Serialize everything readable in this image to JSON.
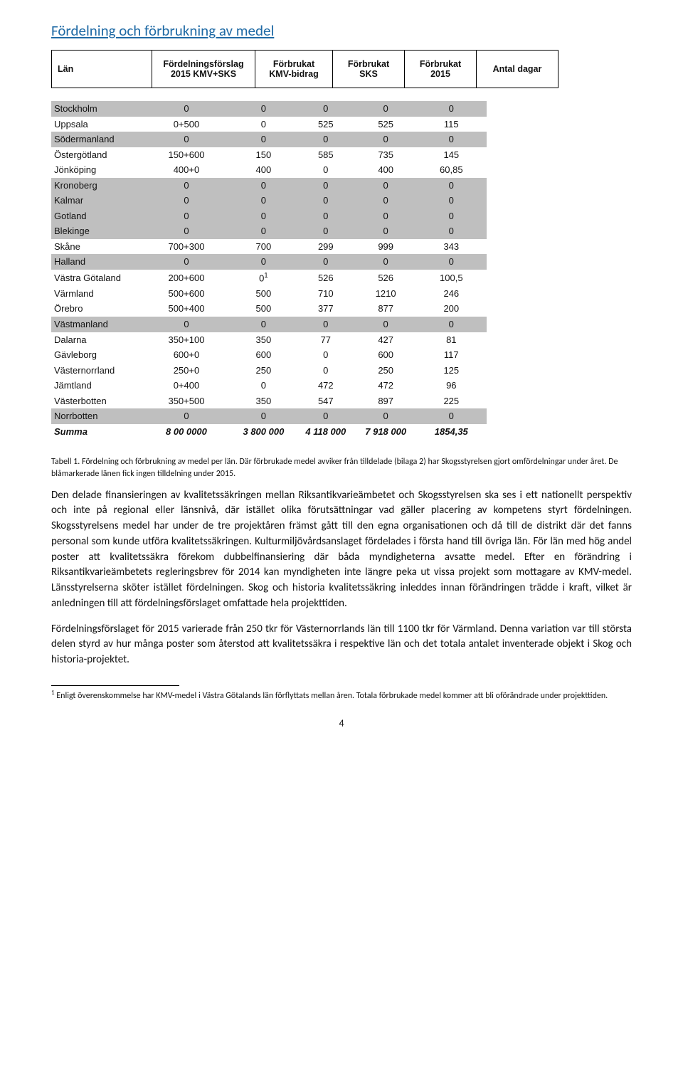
{
  "title": "Fördelning och förbrukning av medel",
  "header": {
    "c0": "Län",
    "c1": "Fördelningsförslag 2015 KMV+SKS",
    "c2": "Förbrukat KMV-bidrag",
    "c3": "Förbrukat SKS",
    "c4": "Förbrukat 2015",
    "c5": "Antal dagar"
  },
  "colors": {
    "title_color": "#1f6aa5",
    "grey_row": "#bfbfbf",
    "border": "#000000",
    "background": "#ffffff"
  },
  "rows": [
    {
      "name": "Stockholm",
      "c1": "0",
      "c2": "0",
      "c3": "0",
      "c4": "0",
      "c5": "0",
      "grey": true
    },
    {
      "name": "Uppsala",
      "c1": "0+500",
      "c2": "0",
      "c3": "525",
      "c4": "525",
      "c5": "115"
    },
    {
      "name": "Södermanland",
      "c1": "0",
      "c2": "0",
      "c3": "0",
      "c4": "0",
      "c5": "0",
      "grey": true
    },
    {
      "name": "Östergötland",
      "c1": "150+600",
      "c2": "150",
      "c3": "585",
      "c4": "735",
      "c5": "145"
    },
    {
      "name": "Jönköping",
      "c1": "400+0",
      "c2": "400",
      "c3": "0",
      "c4": "400",
      "c5": "60,85"
    },
    {
      "name": "Kronoberg",
      "c1": "0",
      "c2": "0",
      "c3": "0",
      "c4": "0",
      "c5": "0",
      "grey": true
    },
    {
      "name": "Kalmar",
      "c1": "0",
      "c2": "0",
      "c3": "0",
      "c4": "0",
      "c5": "0",
      "grey": true
    },
    {
      "name": "Gotland",
      "c1": "0",
      "c2": "0",
      "c3": "0",
      "c4": "0",
      "c5": "0",
      "grey": true
    },
    {
      "name": "Blekinge",
      "c1": "0",
      "c2": "0",
      "c3": "0",
      "c4": "0",
      "c5": "0",
      "grey": true
    },
    {
      "name": "Skåne",
      "c1": "700+300",
      "c2": "700",
      "c3": "299",
      "c4": "999",
      "c5": "343"
    },
    {
      "name": "Halland",
      "c1": "0",
      "c2": "0",
      "c3": "0",
      "c4": "0",
      "c5": "0",
      "grey": true
    },
    {
      "name": "Västra Götaland",
      "c1": "200+600",
      "c2": "0",
      "c2_sup": "1",
      "c3": "526",
      "c4": "526",
      "c5": "100,5"
    },
    {
      "name": "Värmland",
      "c1": "500+600",
      "c2": "500",
      "c3": "710",
      "c4": "1210",
      "c5": "246"
    },
    {
      "name": "Örebro",
      "c1": "500+400",
      "c2": "500",
      "c3": "377",
      "c4": "877",
      "c5": "200"
    },
    {
      "name": "Västmanland",
      "c1": "0",
      "c2": "0",
      "c3": "0",
      "c4": "0",
      "c5": "0",
      "grey": true
    },
    {
      "name": "Dalarna",
      "c1": "350+100",
      "c2": "350",
      "c3": "77",
      "c4": "427",
      "c5": "81"
    },
    {
      "name": "Gävleborg",
      "c1": "600+0",
      "c2": "600",
      "c3": "0",
      "c4": "600",
      "c5": "117"
    },
    {
      "name": "Västernorrland",
      "c1": "250+0",
      "c2": "250",
      "c3": "0",
      "c4": "250",
      "c5": "125"
    },
    {
      "name": "Jämtland",
      "c1": "0+400",
      "c2": "0",
      "c3": "472",
      "c4": "472",
      "c5": "96"
    },
    {
      "name": "Västerbotten",
      "c1": "350+500",
      "c2": "350",
      "c3": "547",
      "c4": "897",
      "c5": "225"
    },
    {
      "name": "Norrbotten",
      "c1": "0",
      "c2": "0",
      "c3": "0",
      "c4": "0",
      "c5": "0",
      "grey": true
    }
  ],
  "sum": {
    "name": "Summa",
    "c1": "8 00 0000",
    "c2": "3 800 000",
    "c3": "4 118 000",
    "c4": "7 918 000",
    "c5": "1854,35"
  },
  "caption": "Tabell 1. Fördelning och förbrukning av medel per län. Där förbrukade medel avviker från tilldelade (bilaga 2) har Skogsstyrelsen gjort omfördelningar under året. De blåmarkerade länen fick ingen tilldelning under 2015.",
  "para1": "Den delade finansieringen av kvalitetssäkringen mellan Riksantikvarieämbetet och Skogsstyrelsen ska ses i ett nationellt perspektiv och inte på regional eller länsnivå, där istället olika förutsättningar vad gäller placering av kompetens styrt fördelningen. Skogsstyrelsens medel har under de tre projektåren främst gått till den egna organisationen och då till de distrikt där det fanns personal som kunde utföra kvalitetssäkringen. Kulturmiljövårdsanslaget fördelades i första hand till övriga län. För län med hög andel poster att kvalitetssäkra förekom dubbelfinansiering där båda myndigheterna avsatte medel. Efter en förändring i Riksantikvarieämbetets regleringsbrev för 2014 kan myndigheten inte längre peka ut vissa projekt som mottagare av KMV-medel. Länsstyrelserna sköter istället fördelningen. Skog och historia kvalitetssäkring inleddes innan förändringen trädde i kraft, vilket är anledningen till att fördelningsförslaget omfattade hela projekttiden.",
  "para2": "Fördelningsförslaget för 2015 varierade från 250 tkr för Västernorrlands län till 1100 tkr för Värmland. Denna variation var till största delen styrd av hur många poster som återstod att kvalitetssäkra i respektive län och det totala antalet inventerade objekt i Skog och historia-projektet.",
  "footnote_marker": "1",
  "footnote": " Enligt överenskommelse har KMV-medel i Västra Götalands län förflyttats mellan åren. Totala förbrukade medel kommer att bli oförändrade under projekttiden.",
  "page_number": "4"
}
